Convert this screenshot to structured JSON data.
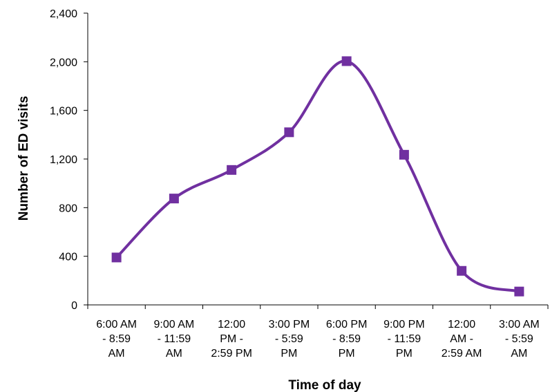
{
  "chart_data": {
    "type": "line",
    "xlabel": "Time of day",
    "ylabel": "Number of ED visits",
    "ylim": [
      0,
      2400
    ],
    "yticks": [
      "0",
      "400",
      "800",
      "1,200",
      "1,600",
      "2,000",
      "2,400"
    ],
    "categories": [
      [
        "6:00 AM",
        "- 8:59",
        "AM"
      ],
      [
        "9:00 AM",
        "- 11:59",
        "AM"
      ],
      [
        "12:00",
        "PM -",
        "2:59 PM"
      ],
      [
        "3:00 PM",
        "- 5:59",
        "PM"
      ],
      [
        "6:00 PM",
        "- 8:59",
        "PM"
      ],
      [
        "9:00 PM",
        "- 11:59",
        "PM"
      ],
      [
        "12:00",
        "AM -",
        "2:59 AM"
      ],
      [
        "3:00 AM",
        "- 5:59",
        "AM"
      ]
    ],
    "series": [
      {
        "values": [
          390,
          875,
          1110,
          1420,
          2005,
          1235,
          280,
          110
        ]
      }
    ],
    "colors": {
      "line": "#7030a0",
      "marker": "#7030a0",
      "axis": "#000000"
    },
    "grid": false,
    "smooth": true
  }
}
